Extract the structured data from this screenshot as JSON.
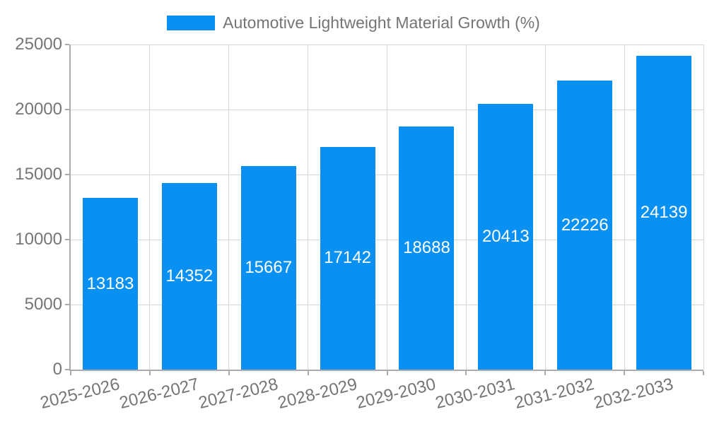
{
  "chart_data": {
    "type": "bar",
    "title": "Automotive Lightweight Material Growth (%)",
    "categories": [
      "2025-2026",
      "2026-2027",
      "2027-2028",
      "2028-2029",
      "2029-2030",
      "2030-2031",
      "2031-2032",
      "2032-2033"
    ],
    "values": [
      13183,
      14352,
      15667,
      17142,
      18688,
      20413,
      22226,
      24139
    ],
    "xlabel": "",
    "ylabel": "",
    "ylim": [
      0,
      25000
    ],
    "yticks": [
      0,
      5000,
      10000,
      15000,
      20000,
      25000
    ],
    "grid": "both",
    "legend_position": "top",
    "value_labels": "inside-center",
    "colors": {
      "bar": "#0890f2",
      "bar_label": "#ffffff",
      "axis_text": "#757575",
      "grid_line": "#d6d6d6",
      "axis_line": "#ababab",
      "background": "#ffffff"
    }
  }
}
